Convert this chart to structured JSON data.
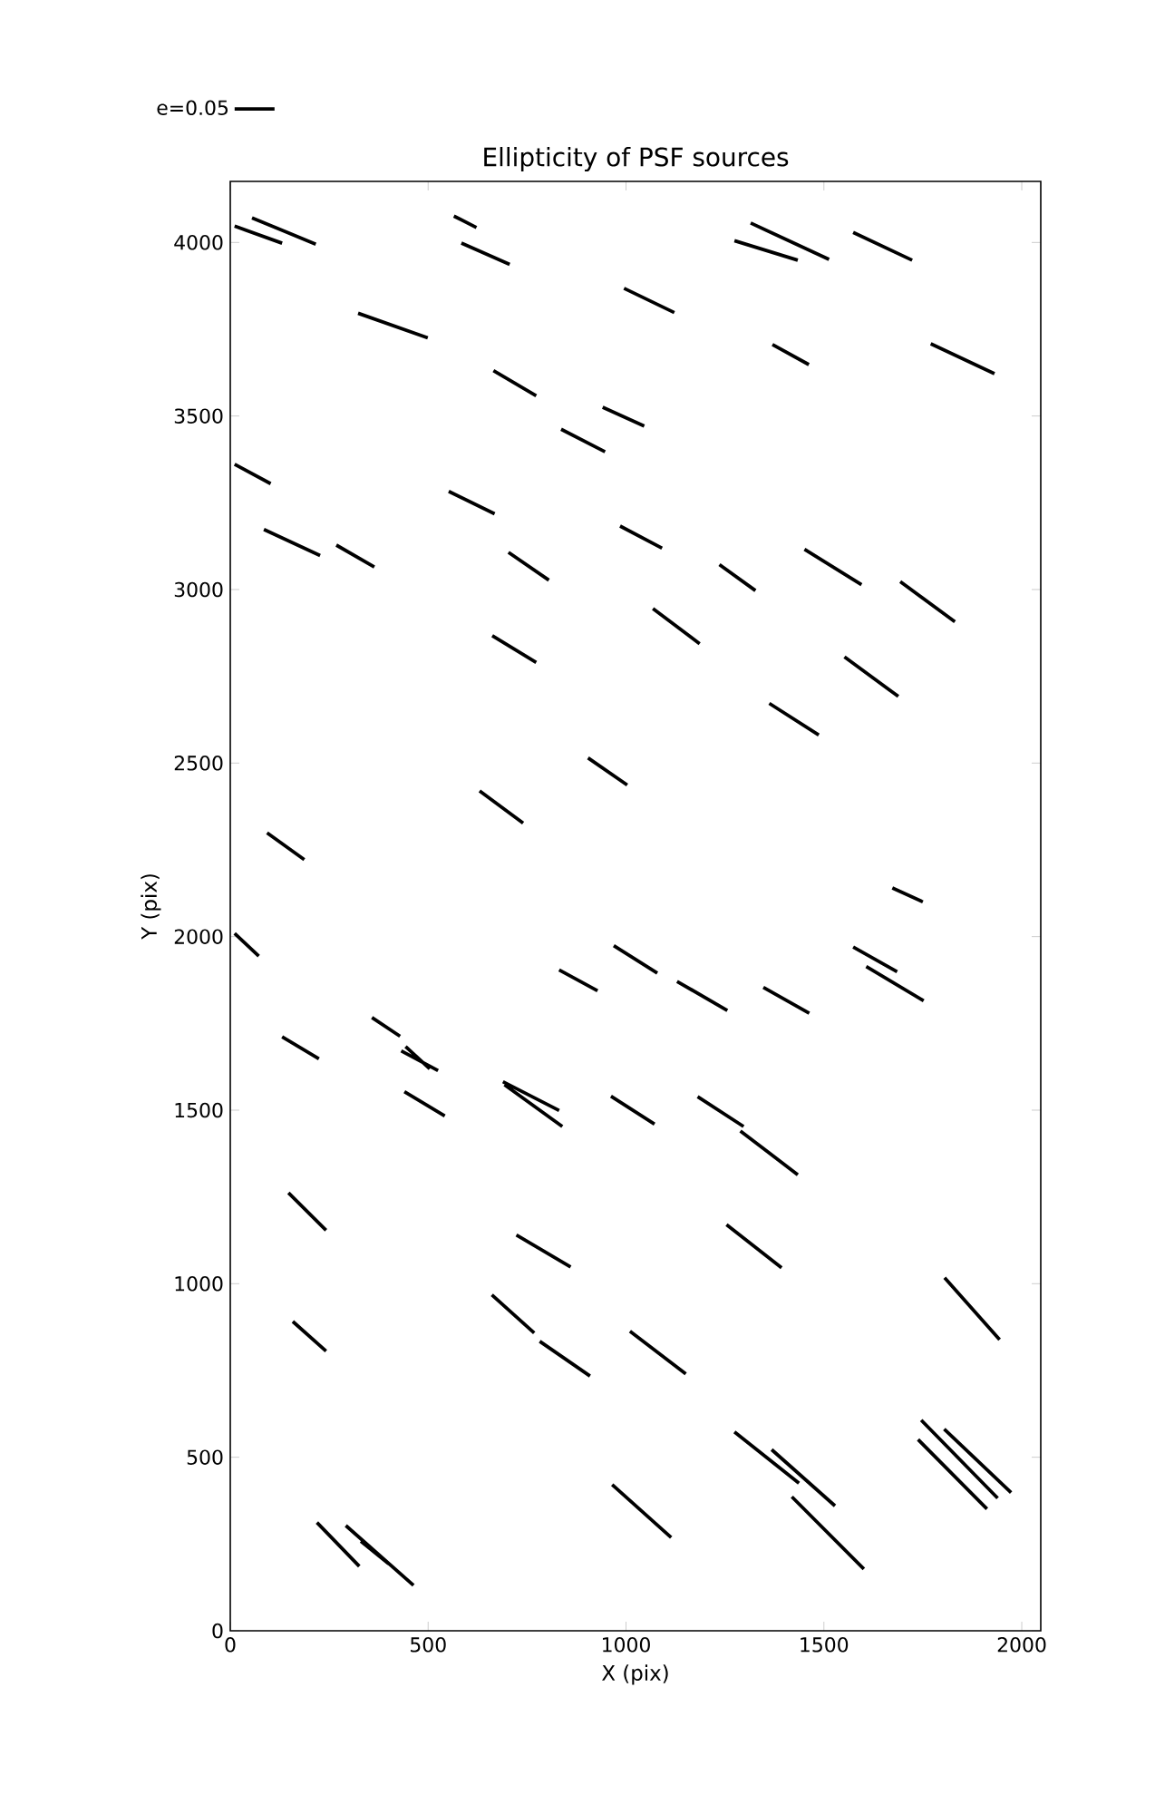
{
  "chart_data": {
    "type": "line",
    "title": "Ellipticity of PSF sources",
    "xlabel": "X (pix)",
    "ylabel": "Y (pix)",
    "xlim": [
      0,
      2048
    ],
    "ylim": [
      0,
      4176
    ],
    "xticks": [
      0,
      500,
      1000,
      1500,
      2000
    ],
    "yticks": [
      0,
      500,
      1000,
      1500,
      2000,
      2500,
      3000,
      3500,
      4000
    ],
    "legend": "top left",
    "marker": "none",
    "line_style": "solid",
    "series": [
      {
        "name": "e=0.05",
        "color": "#000000",
        "x": [
          11,
          131,
          null,
          55,
          216,
          null,
          565,
          622,
          null,
          584,
          706,
          null,
          995,
          1122,
          null,
          323,
          499,
          null,
          665,
          773,
          null,
          941,
          1046,
          null,
          836,
          947,
          null,
          11,
          102,
          null,
          552,
          668,
          null,
          85,
          227,
          null,
          268,
          364,
          null,
          703,
          805,
          null,
          985,
          1091,
          null,
          662,
          773,
          null,
          1315,
          1513,
          null,
          1274,
          1434,
          null,
          1574,
          1723,
          null,
          1370,
          1462,
          null,
          1770,
          1931,
          null,
          1236,
          1327,
          null,
          1451,
          1595,
          null,
          1693,
          1831,
          null,
          1068,
          1186,
          null,
          1552,
          1688,
          null,
          904,
          1003,
          null,
          630,
          740,
          null,
          93,
          187,
          null,
          11,
          72,
          null,
          831,
          928,
          null,
          969,
          1079,
          null,
          131,
          224,
          null,
          358,
          429,
          null,
          432,
          525,
          null,
          443,
          504,
          null,
          440,
          542,
          null,
          689,
          831,
          null,
          693,
          839,
          null,
          962,
          1072,
          null,
          1362,
          1487,
          null,
          1673,
          1750,
          null,
          1574,
          1685,
          null,
          1607,
          1752,
          null,
          1129,
          1256,
          null,
          1347,
          1463,
          null,
          1181,
          1297,
          null,
          1289,
          1434,
          null,
          147,
          242,
          null,
          723,
          860,
          null,
          158,
          242,
          null,
          661,
          768,
          null,
          782,
          909,
          null,
          1010,
          1151,
          null,
          965,
          1114,
          null,
          219,
          326,
          null,
          292,
          463,
          null,
          330,
          400,
          null,
          1254,
          1393,
          null,
          1805,
          1944,
          null,
          1274,
          1437,
          null,
          1368,
          1528,
          null,
          1419,
          1601,
          null,
          1746,
          1939,
          null,
          1804,
          1973,
          null,
          1738,
          1912
        ],
        "values": [
          4047,
          3998,
          null,
          4071,
          3995,
          null,
          4076,
          4043,
          null,
          3998,
          3937,
          null,
          3868,
          3798,
          null,
          3796,
          3725,
          null,
          3631,
          3558,
          null,
          3525,
          3471,
          null,
          3462,
          3397,
          null,
          3361,
          3305,
          null,
          3283,
          3218,
          null,
          3173,
          3098,
          null,
          3128,
          3065,
          null,
          3107,
          3027,
          null,
          3183,
          3119,
          null,
          2867,
          2790,
          null,
          4056,
          3951,
          null,
          4005,
          3949,
          null,
          4029,
          3949,
          null,
          3706,
          3648,
          null,
          3708,
          3622,
          null,
          3072,
          2997,
          null,
          3116,
          3014,
          null,
          3023,
          2907,
          null,
          2945,
          2844,
          null,
          2806,
          2692,
          null,
          2515,
          2437,
          null,
          2420,
          2327,
          null,
          2299,
          2222,
          null,
          2009,
          1944,
          null,
          1904,
          1844,
          null,
          1974,
          1895,
          null,
          1711,
          1648,
          null,
          1767,
          1713,
          null,
          1671,
          1614,
          null,
          1683,
          1619,
          null,
          1553,
          1483,
          null,
          1582,
          1499,
          null,
          1573,
          1453,
          null,
          1540,
          1460,
          null,
          2672,
          2581,
          null,
          2140,
          2100,
          null,
          1970,
          1899,
          null,
          1914,
          1815,
          null,
          1871,
          1787,
          null,
          1854,
          1779,
          null,
          1539,
          1453,
          null,
          1440,
          1314,
          null,
          1262,
          1154,
          null,
          1140,
          1048,
          null,
          891,
          806,
          null,
          968,
          858,
          null,
          834,
          734,
          null,
          863,
          740,
          null,
          421,
          269,
          null,
          312,
          186,
          null,
          303,
          131,
          null,
          258,
          193,
          null,
          1170,
          1046,
          null,
          1017,
          839,
          null,
          573,
          425,
          null,
          522,
          360,
          null,
          386,
          178,
          null,
          607,
          382,
          null,
          581,
          398,
          null,
          551,
          351
        ]
      }
    ]
  }
}
